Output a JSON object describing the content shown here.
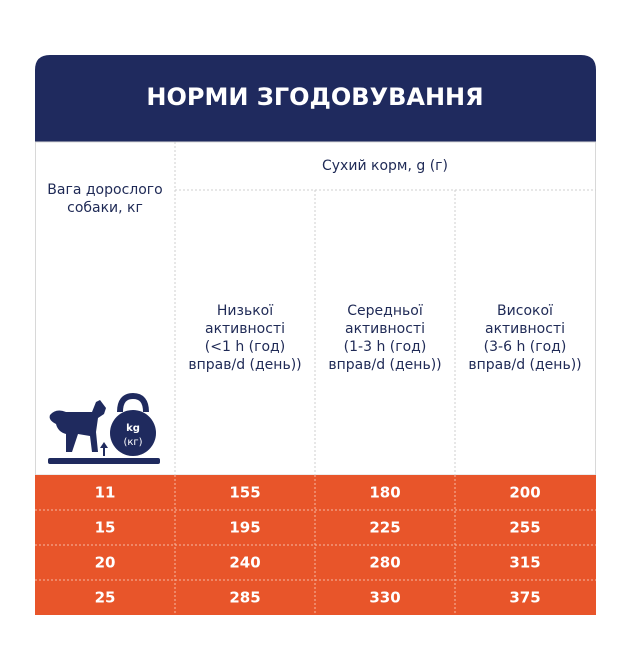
{
  "header": {
    "title": "НОРМИ ЗГОДОВУВАННЯ"
  },
  "table": {
    "group_header": "Сухий корм, g (г)",
    "first_header": [
      "Вага дорослого",
      "собаки, кг"
    ],
    "columns": [
      [
        "Низької",
        "активності",
        "(<1 h (год)",
        "вправ/d (день))"
      ],
      [
        "Середньої",
        "активності",
        "(1-3 h (год)",
        "вправ/d (день))"
      ],
      [
        "Високої",
        "активності",
        "(3-6 h (год)",
        "вправ/d (день))"
      ]
    ],
    "rows": [
      [
        "11",
        "155",
        "180",
        "200"
      ],
      [
        "15",
        "195",
        "225",
        "255"
      ],
      [
        "20",
        "240",
        "280",
        "315"
      ],
      [
        "25",
        "285",
        "330",
        "375"
      ]
    ]
  },
  "icon": {
    "labels": [
      "kg",
      "(кг)"
    ]
  }
}
